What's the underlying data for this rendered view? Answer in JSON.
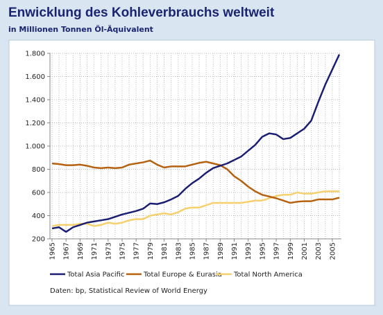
{
  "chart_data": {
    "type": "line",
    "title": "Enwicklung des Kohleverbrauchs weltweit",
    "subtitle": "in Millionen Tonnen Öl-Äquivalent",
    "source": "Daten: bp, Statistical Review  of World Energy",
    "x": [
      1965,
      1966,
      1967,
      1968,
      1969,
      1970,
      1971,
      1972,
      1973,
      1974,
      1975,
      1976,
      1977,
      1978,
      1979,
      1980,
      1981,
      1982,
      1983,
      1984,
      1985,
      1986,
      1987,
      1988,
      1989,
      1990,
      1991,
      1992,
      1993,
      1994,
      1995,
      1996,
      1997,
      1998,
      1999,
      2000,
      2001,
      2002,
      2003,
      2004,
      2005,
      2006
    ],
    "xlim": [
      1965,
      2006
    ],
    "xticks": [
      1965,
      1967,
      1969,
      1971,
      1973,
      1975,
      1977,
      1979,
      1981,
      1983,
      1985,
      1987,
      1989,
      1991,
      1993,
      1995,
      1997,
      1999,
      2001,
      2003,
      2005
    ],
    "ylim": [
      200,
      1800
    ],
    "yticks": [
      200,
      400,
      600,
      800,
      {
        "value": 1000,
        "label": "1.000"
      },
      {
        "value": 1200,
        "label": "1.200"
      },
      {
        "value": 1400,
        "label": "1.400"
      },
      {
        "value": 1600,
        "label": "1.600"
      },
      {
        "value": 1800,
        "label": "1.800"
      }
    ],
    "grid": true,
    "legend": "bottom",
    "series": [
      {
        "name": "Total Asia Pacific",
        "color": "#1b1f73",
        "values": [
          290,
          300,
          260,
          300,
          320,
          340,
          350,
          360,
          370,
          390,
          410,
          425,
          440,
          460,
          505,
          500,
          515,
          540,
          570,
          630,
          680,
          720,
          770,
          810,
          830,
          850,
          880,
          910,
          960,
          1010,
          1080,
          1110,
          1100,
          1060,
          1070,
          1110,
          1150,
          1220,
          1380,
          1530,
          1660,
          1790
        ]
      },
      {
        "name": "Total Europe & Eurasia",
        "color": "#b5610f",
        "values": [
          850,
          845,
          835,
          835,
          840,
          830,
          815,
          810,
          815,
          810,
          815,
          840,
          850,
          860,
          875,
          840,
          815,
          825,
          825,
          825,
          840,
          855,
          865,
          850,
          835,
          800,
          740,
          700,
          650,
          610,
          580,
          565,
          550,
          530,
          510,
          520,
          525,
          525,
          540,
          540,
          540,
          555
        ]
      },
      {
        "name": "Total North America",
        "color": "#f7d06e",
        "values": [
          310,
          320,
          320,
          320,
          330,
          330,
          310,
          320,
          340,
          330,
          340,
          360,
          370,
          370,
          400,
          410,
          420,
          410,
          430,
          460,
          470,
          470,
          490,
          510,
          510,
          510,
          510,
          510,
          520,
          530,
          530,
          550,
          570,
          580,
          580,
          600,
          590,
          590,
          600,
          610,
          610,
          610
        ]
      }
    ]
  }
}
